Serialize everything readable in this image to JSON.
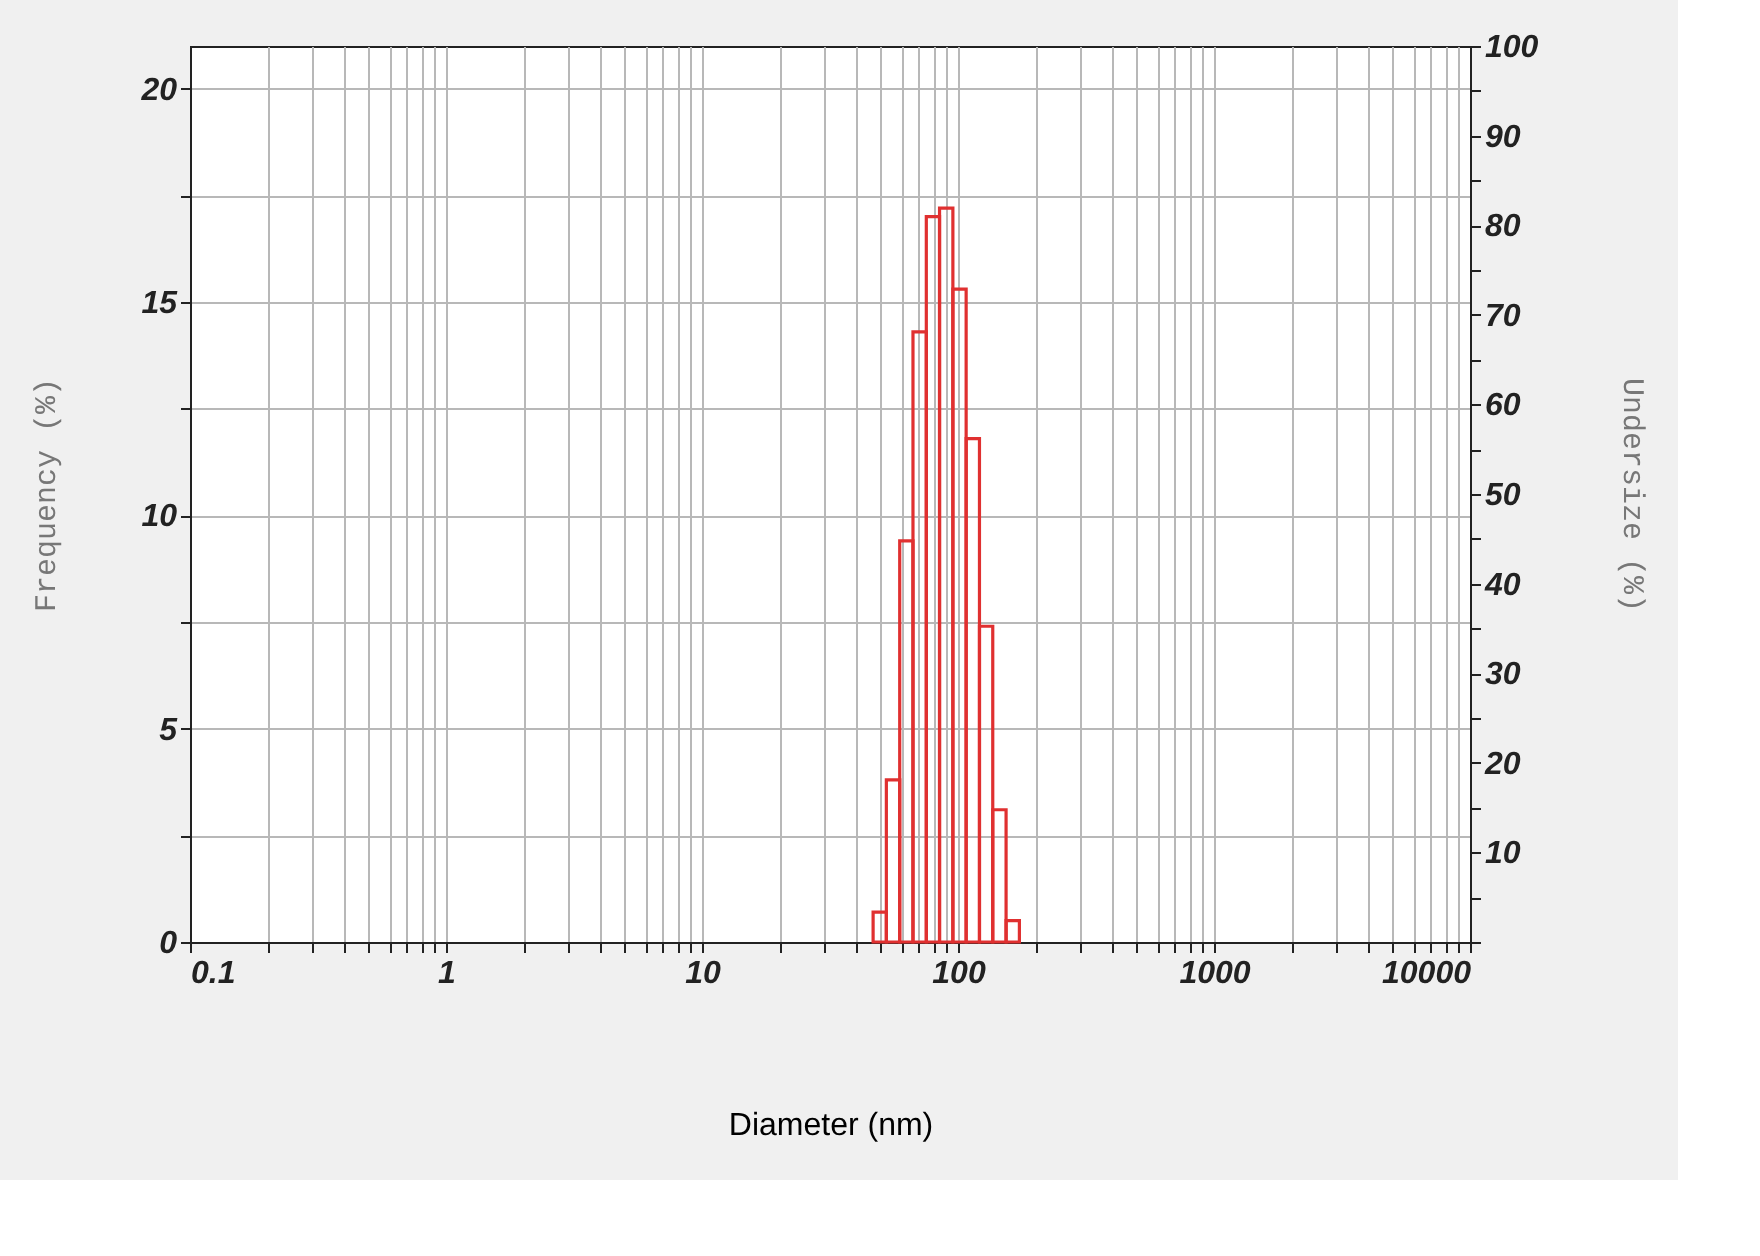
{
  "chart_data": {
    "type": "histogram",
    "xlabel": "Diameter (nm)",
    "ylabel": "Frequency (%)",
    "y2label": "Undersize (%)",
    "bins": [
      46.6,
      52.5,
      59.2,
      66.7,
      75.2,
      84.7,
      95.5,
      107.6,
      121.3,
      136.7,
      154.1,
      173.7
    ],
    "values": [
      0.7,
      3.8,
      9.4,
      14.3,
      17.0,
      17.2,
      15.3,
      11.8,
      7.4,
      3.1,
      0.5
    ],
    "color": "#e03030",
    "log": "x",
    "xlim": [
      0.1,
      10000
    ],
    "xticks": [
      0.1,
      {
        "value": 0.2,
        "label": null
      },
      {
        "value": 0.3,
        "label": null
      },
      {
        "value": 0.4,
        "label": null
      },
      {
        "value": 0.5,
        "label": null
      },
      {
        "value": 0.6,
        "label": null
      },
      {
        "value": 0.7,
        "label": null
      },
      {
        "value": 0.8,
        "label": null
      },
      {
        "value": 0.9,
        "label": null
      },
      1,
      {
        "value": 2,
        "label": null
      },
      {
        "value": 3,
        "label": null
      },
      {
        "value": 4,
        "label": null
      },
      {
        "value": 5,
        "label": null
      },
      {
        "value": 6,
        "label": null
      },
      {
        "value": 7,
        "label": null
      },
      {
        "value": 8,
        "label": null
      },
      {
        "value": 9,
        "label": null
      },
      10,
      {
        "value": 20,
        "label": null
      },
      {
        "value": 30,
        "label": null
      },
      {
        "value": 40,
        "label": null
      },
      {
        "value": 50,
        "label": null
      },
      {
        "value": 60,
        "label": null
      },
      {
        "value": 70,
        "label": null
      },
      {
        "value": 80,
        "label": null
      },
      {
        "value": 90,
        "label": null
      },
      100,
      {
        "value": 200,
        "label": null
      },
      {
        "value": 300,
        "label": null
      },
      {
        "value": 400,
        "label": null
      },
      {
        "value": 500,
        "label": null
      },
      {
        "value": 600,
        "label": null
      },
      {
        "value": 700,
        "label": null
      },
      {
        "value": 800,
        "label": null
      },
      {
        "value": 900,
        "label": null
      },
      1000,
      {
        "value": 2000,
        "label": null
      },
      {
        "value": 3000,
        "label": null
      },
      {
        "value": 4000,
        "label": null
      },
      {
        "value": 5000,
        "label": null
      },
      {
        "value": 6000,
        "label": null
      },
      {
        "value": 7000,
        "label": null
      },
      {
        "value": 8000,
        "label": null
      },
      {
        "value": 9000,
        "label": null
      },
      10000
    ],
    "ylim": [
      0,
      21
    ],
    "yticks": [
      0,
      {
        "value": 2.5,
        "label": null
      },
      5,
      {
        "value": 7.5,
        "label": null
      },
      10,
      {
        "value": 12.5,
        "label": null
      },
      15,
      {
        "value": 17.5,
        "label": null
      },
      20
    ],
    "y2lim": [
      0,
      100
    ],
    "y2ticks": [
      {
        "value": 0,
        "label": null
      },
      {
        "value": 5,
        "label": null
      },
      10,
      {
        "value": 15,
        "label": null
      },
      20,
      {
        "value": 25,
        "label": null
      },
      30,
      {
        "value": 35,
        "label": null
      },
      40,
      {
        "value": 45,
        "label": null
      },
      50,
      {
        "value": 55,
        "label": null
      },
      60,
      {
        "value": 65,
        "label": null
      },
      70,
      {
        "value": 75,
        "label": null
      },
      80,
      {
        "value": 85,
        "label": null
      },
      90,
      {
        "value": 95,
        "label": null
      },
      100
    ],
    "grid": true
  }
}
